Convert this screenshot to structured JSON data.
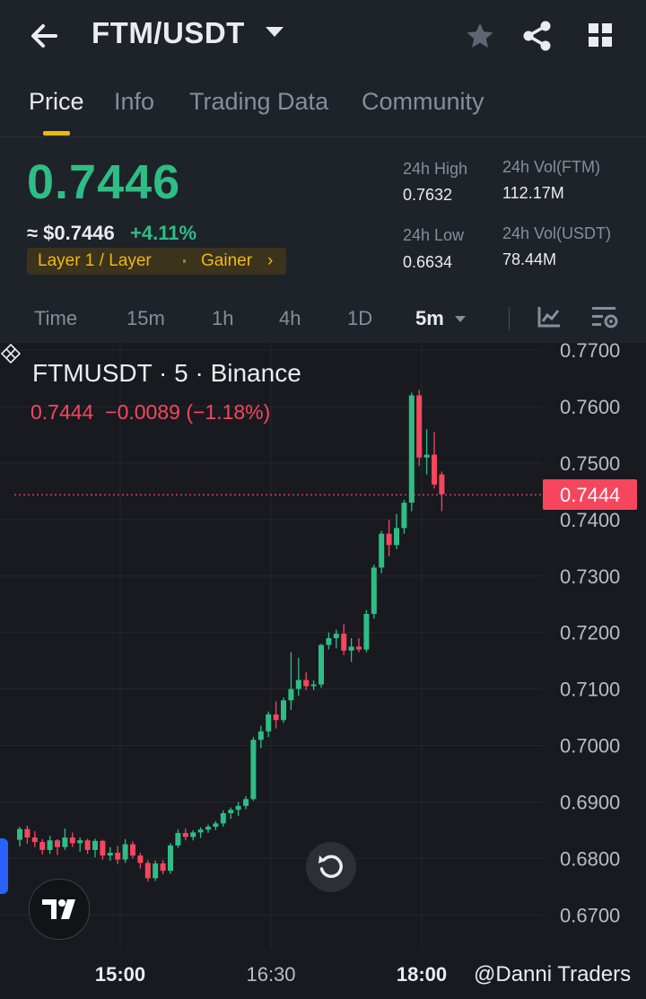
{
  "header": {
    "pair": "FTM/USDT",
    "icons": [
      "back-arrow-icon",
      "caret-down-icon",
      "star-icon",
      "share-icon",
      "grid-icon"
    ]
  },
  "tabs": [
    {
      "label": "Price",
      "active": true
    },
    {
      "label": "Info",
      "active": false
    },
    {
      "label": "Trading Data",
      "active": false
    },
    {
      "label": "Community",
      "active": false
    }
  ],
  "ticker": {
    "last_price": "0.7446",
    "usd_price": "≈ $0.7446",
    "change_pct": "+4.11%",
    "tag_category": "Layer 1 / Layer",
    "tag_gainer": "Gainer",
    "tag_chevron": "›",
    "stats": {
      "high_label": "24h High",
      "high_value": "0.7632",
      "low_label": "24h Low",
      "low_value": "0.6634",
      "vol_base_label": "24h Vol(FTM)",
      "vol_base_value": "112.17M",
      "vol_quote_label": "24h Vol(USDT)",
      "vol_quote_value": "78.44M"
    },
    "up_color": "#2ebd85",
    "down_color": "#f6465d",
    "accent_color": "#f0b90b"
  },
  "intervals": {
    "items": [
      "Time",
      "15m",
      "1h",
      "4h",
      "1D",
      "5m"
    ],
    "selected": "5m",
    "icons": [
      "indicator-icon",
      "chart-settings-icon"
    ]
  },
  "chart": {
    "symbol_line": "FTMUSDT · 5 · Binance",
    "last": "0.7444",
    "change": "−0.0089",
    "change_pct": "(−1.18%)",
    "current_price_tag": "0.7444",
    "watermark": "@Danni Traders"
  },
  "chart_data": {
    "type": "candlestick",
    "ylim": [
      0.664,
      0.7713
    ],
    "y_ticks": [
      "0.7700",
      "0.7600",
      "0.7500",
      "0.7400",
      "0.7300",
      "0.7200",
      "0.7100",
      "0.7000",
      "0.6900",
      "0.6800",
      "0.6700"
    ],
    "x_ticks": [
      "15:00",
      "16:30",
      "18:00"
    ],
    "current_price": 0.7444,
    "candles": [
      {
        "o": 0.6833,
        "h": 0.6856,
        "l": 0.6821,
        "c": 0.6852
      },
      {
        "o": 0.6852,
        "h": 0.6858,
        "l": 0.6826,
        "c": 0.6837
      },
      {
        "o": 0.6837,
        "h": 0.6848,
        "l": 0.682,
        "c": 0.6829
      },
      {
        "o": 0.6829,
        "h": 0.6834,
        "l": 0.6807,
        "c": 0.6815
      },
      {
        "o": 0.6815,
        "h": 0.684,
        "l": 0.6808,
        "c": 0.6832
      },
      {
        "o": 0.6832,
        "h": 0.6834,
        "l": 0.6806,
        "c": 0.682
      },
      {
        "o": 0.682,
        "h": 0.6853,
        "l": 0.6815,
        "c": 0.6837
      },
      {
        "o": 0.6837,
        "h": 0.6846,
        "l": 0.682,
        "c": 0.6827
      },
      {
        "o": 0.6827,
        "h": 0.6837,
        "l": 0.6812,
        "c": 0.6832
      },
      {
        "o": 0.6832,
        "h": 0.6835,
        "l": 0.6808,
        "c": 0.6815
      },
      {
        "o": 0.6815,
        "h": 0.6835,
        "l": 0.6802,
        "c": 0.6831
      },
      {
        "o": 0.6831,
        "h": 0.6833,
        "l": 0.6798,
        "c": 0.6805
      },
      {
        "o": 0.6805,
        "h": 0.682,
        "l": 0.6796,
        "c": 0.681
      },
      {
        "o": 0.681,
        "h": 0.6822,
        "l": 0.679,
        "c": 0.6798
      },
      {
        "o": 0.6798,
        "h": 0.6834,
        "l": 0.6792,
        "c": 0.6825
      },
      {
        "o": 0.6825,
        "h": 0.683,
        "l": 0.68,
        "c": 0.6805
      },
      {
        "o": 0.6805,
        "h": 0.681,
        "l": 0.6782,
        "c": 0.6792
      },
      {
        "o": 0.6792,
        "h": 0.6797,
        "l": 0.6759,
        "c": 0.6765
      },
      {
        "o": 0.6765,
        "h": 0.6796,
        "l": 0.676,
        "c": 0.6791
      },
      {
        "o": 0.6791,
        "h": 0.6797,
        "l": 0.6772,
        "c": 0.6778
      },
      {
        "o": 0.6778,
        "h": 0.6827,
        "l": 0.6773,
        "c": 0.6823
      },
      {
        "o": 0.6823,
        "h": 0.6851,
        "l": 0.6819,
        "c": 0.6845
      },
      {
        "o": 0.6845,
        "h": 0.6853,
        "l": 0.6832,
        "c": 0.6838
      },
      {
        "o": 0.6838,
        "h": 0.685,
        "l": 0.6832,
        "c": 0.6846
      },
      {
        "o": 0.6846,
        "h": 0.6855,
        "l": 0.6836,
        "c": 0.6851
      },
      {
        "o": 0.6851,
        "h": 0.686,
        "l": 0.6845,
        "c": 0.6856
      },
      {
        "o": 0.6856,
        "h": 0.6866,
        "l": 0.685,
        "c": 0.6862
      },
      {
        "o": 0.6862,
        "h": 0.6885,
        "l": 0.6856,
        "c": 0.688
      },
      {
        "o": 0.688,
        "h": 0.689,
        "l": 0.687,
        "c": 0.6886
      },
      {
        "o": 0.6886,
        "h": 0.69,
        "l": 0.6875,
        "c": 0.6893
      },
      {
        "o": 0.6893,
        "h": 0.691,
        "l": 0.6887,
        "c": 0.6905
      },
      {
        "o": 0.6905,
        "h": 0.7015,
        "l": 0.6902,
        "c": 0.701
      },
      {
        "o": 0.701,
        "h": 0.7035,
        "l": 0.6995,
        "c": 0.7025
      },
      {
        "o": 0.7025,
        "h": 0.706,
        "l": 0.7015,
        "c": 0.7055
      },
      {
        "o": 0.7055,
        "h": 0.7078,
        "l": 0.703,
        "c": 0.7045
      },
      {
        "o": 0.7045,
        "h": 0.7085,
        "l": 0.704,
        "c": 0.708
      },
      {
        "o": 0.708,
        "h": 0.7165,
        "l": 0.7063,
        "c": 0.71
      },
      {
        "o": 0.71,
        "h": 0.7155,
        "l": 0.7088,
        "c": 0.7116
      },
      {
        "o": 0.7116,
        "h": 0.713,
        "l": 0.7098,
        "c": 0.7105
      },
      {
        "o": 0.7105,
        "h": 0.7115,
        "l": 0.7098,
        "c": 0.7108
      },
      {
        "o": 0.7108,
        "h": 0.718,
        "l": 0.7102,
        "c": 0.7178
      },
      {
        "o": 0.7178,
        "h": 0.72,
        "l": 0.717,
        "c": 0.719
      },
      {
        "o": 0.719,
        "h": 0.7205,
        "l": 0.7172,
        "c": 0.7198
      },
      {
        "o": 0.7198,
        "h": 0.7215,
        "l": 0.716,
        "c": 0.7168
      },
      {
        "o": 0.7168,
        "h": 0.719,
        "l": 0.7148,
        "c": 0.7175
      },
      {
        "o": 0.7175,
        "h": 0.719,
        "l": 0.7165,
        "c": 0.717
      },
      {
        "o": 0.717,
        "h": 0.724,
        "l": 0.7165,
        "c": 0.7233
      },
      {
        "o": 0.7233,
        "h": 0.732,
        "l": 0.7225,
        "c": 0.7315
      },
      {
        "o": 0.7315,
        "h": 0.738,
        "l": 0.7305,
        "c": 0.7375
      },
      {
        "o": 0.7375,
        "h": 0.74,
        "l": 0.7335,
        "c": 0.7355
      },
      {
        "o": 0.7355,
        "h": 0.741,
        "l": 0.7348,
        "c": 0.7385
      },
      {
        "o": 0.7385,
        "h": 0.7435,
        "l": 0.7375,
        "c": 0.743
      },
      {
        "o": 0.743,
        "h": 0.7625,
        "l": 0.7415,
        "c": 0.762
      },
      {
        "o": 0.762,
        "h": 0.763,
        "l": 0.7495,
        "c": 0.751
      },
      {
        "o": 0.751,
        "h": 0.756,
        "l": 0.748,
        "c": 0.7515
      },
      {
        "o": 0.7515,
        "h": 0.7555,
        "l": 0.7455,
        "c": 0.7462
      },
      {
        "o": 0.748,
        "h": 0.7485,
        "l": 0.7415,
        "c": 0.7445
      }
    ]
  }
}
